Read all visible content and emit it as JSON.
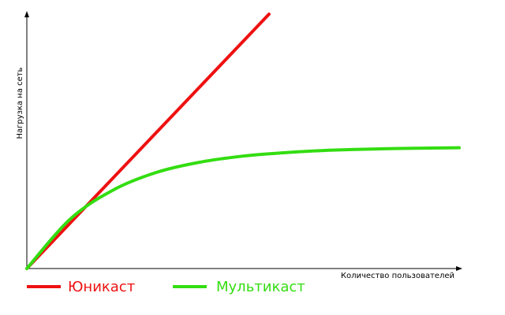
{
  "chart_data": {
    "type": "line",
    "title": "",
    "xlabel": "Количество пользователей",
    "ylabel": "Нагрузка на сеть",
    "xlim": [
      0,
      100
    ],
    "ylim": [
      0,
      100
    ],
    "grid": false,
    "axis_ticks": false,
    "legend_position": "bottom-left",
    "series": [
      {
        "name": "Юникаст",
        "color": "#ee1111",
        "x": [
          0,
          56
        ],
        "y": [
          0,
          100
        ]
      },
      {
        "name": "Мультикаст",
        "color": "#33dd11",
        "x": [
          0,
          10,
          20,
          30,
          40,
          50,
          60,
          70,
          80,
          90,
          100
        ],
        "y": [
          0,
          19.4,
          30.9,
          37.8,
          41.8,
          44.2,
          45.6,
          46.5,
          47.0,
          47.3,
          47.5
        ]
      }
    ]
  }
}
